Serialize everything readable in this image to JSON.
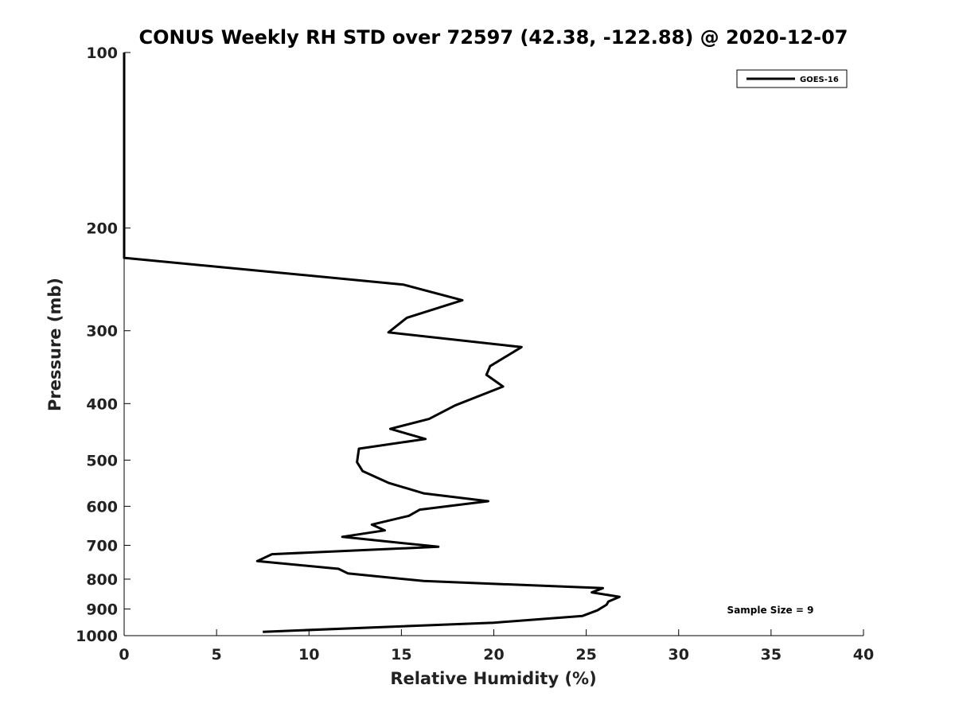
{
  "chart_data": {
    "type": "line",
    "title": "CONUS Weekly RH STD over 72597 (42.38, -122.88) @ 2020-12-07",
    "xlabel": "Relative Humidity (%)",
    "ylabel": "Pressure (mb)",
    "xlim": [
      0,
      40
    ],
    "ylim": [
      100,
      1000
    ],
    "y_scale": "log",
    "y_inverted": true,
    "x_ticks": [
      0,
      5,
      10,
      15,
      20,
      25,
      30,
      35,
      40
    ],
    "y_ticks": [
      100,
      200,
      300,
      400,
      500,
      600,
      700,
      800,
      900,
      1000
    ],
    "grid": false,
    "legend_position": "top-right",
    "annotation": "Sample Size = 9",
    "series": [
      {
        "name": "GOES-16",
        "color": "#000000",
        "points": [
          [
            0,
            100
          ],
          [
            0,
            150
          ],
          [
            0,
            200
          ],
          [
            0,
            225
          ],
          [
            15.1,
            250
          ],
          [
            18.3,
            266
          ],
          [
            15.3,
            285
          ],
          [
            14.3,
            302
          ],
          [
            21.5,
            320
          ],
          [
            19.8,
            345
          ],
          [
            19.6,
            357
          ],
          [
            20.5,
            374
          ],
          [
            17.9,
            403
          ],
          [
            16.5,
            425
          ],
          [
            14.4,
            442
          ],
          [
            16.3,
            460
          ],
          [
            12.7,
            478
          ],
          [
            12.6,
            504
          ],
          [
            12.9,
            522
          ],
          [
            14.3,
            547
          ],
          [
            16.2,
            570
          ],
          [
            19.7,
            588
          ],
          [
            16.0,
            608
          ],
          [
            15.4,
            623
          ],
          [
            13.4,
            645
          ],
          [
            14.1,
            660
          ],
          [
            11.8,
            677
          ],
          [
            17.0,
            704
          ],
          [
            8.0,
            725
          ],
          [
            7.2,
            745
          ],
          [
            11.6,
            768
          ],
          [
            12.1,
            782
          ],
          [
            16.2,
            806
          ],
          [
            25.9,
            829
          ],
          [
            25.3,
            843
          ],
          [
            26.8,
            858
          ],
          [
            26.2,
            874
          ],
          [
            26.1,
            885
          ],
          [
            25.6,
            905
          ],
          [
            24.8,
            925
          ],
          [
            20.0,
            950
          ],
          [
            7.5,
            985
          ]
        ]
      }
    ]
  }
}
